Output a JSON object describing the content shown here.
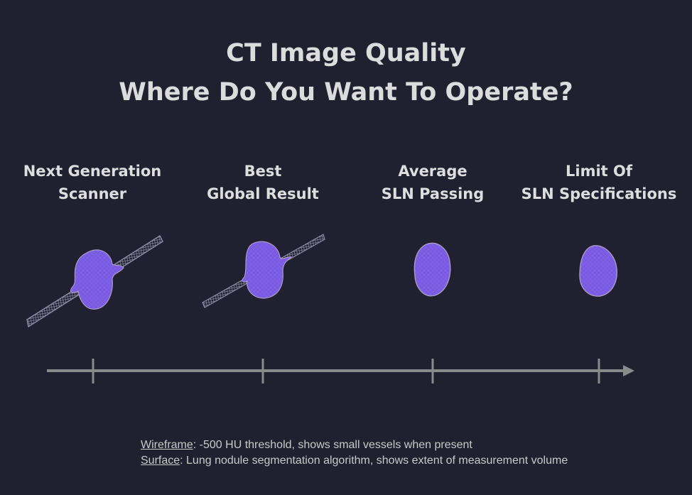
{
  "title": {
    "line1": "CT Image Quality",
    "line2": "Where Do You Want To Operate?"
  },
  "columns": [
    {
      "line1": "Next Generation",
      "line2": "Scanner",
      "rendering": "nodule-with-thick-vessel"
    },
    {
      "line1": "Best",
      "line2": "Global Result",
      "rendering": "nodule-with-thin-vessel"
    },
    {
      "line1": "Average",
      "line2": "SLN Passing",
      "rendering": "nodule-only"
    },
    {
      "line1": "Limit Of",
      "line2": "SLN Specifications",
      "rendering": "nodule-only-small"
    }
  ],
  "axis": {
    "tick_count": 4,
    "direction": "increasing-right"
  },
  "legend": {
    "wireframe_term": "Wireframe",
    "wireframe_text": ": -500 HU threshold, shows small vessels when present",
    "surface_term": "Surface",
    "surface_text": ": Lung nodule segmentation algorithm, shows extent of measurement volume"
  },
  "colors": {
    "background": "#202030",
    "title_text": "#dcdcdc",
    "nodule_fill": "#7a5ae0",
    "wireframe": "#8d8ca4",
    "axis": "#8a8a8a"
  }
}
